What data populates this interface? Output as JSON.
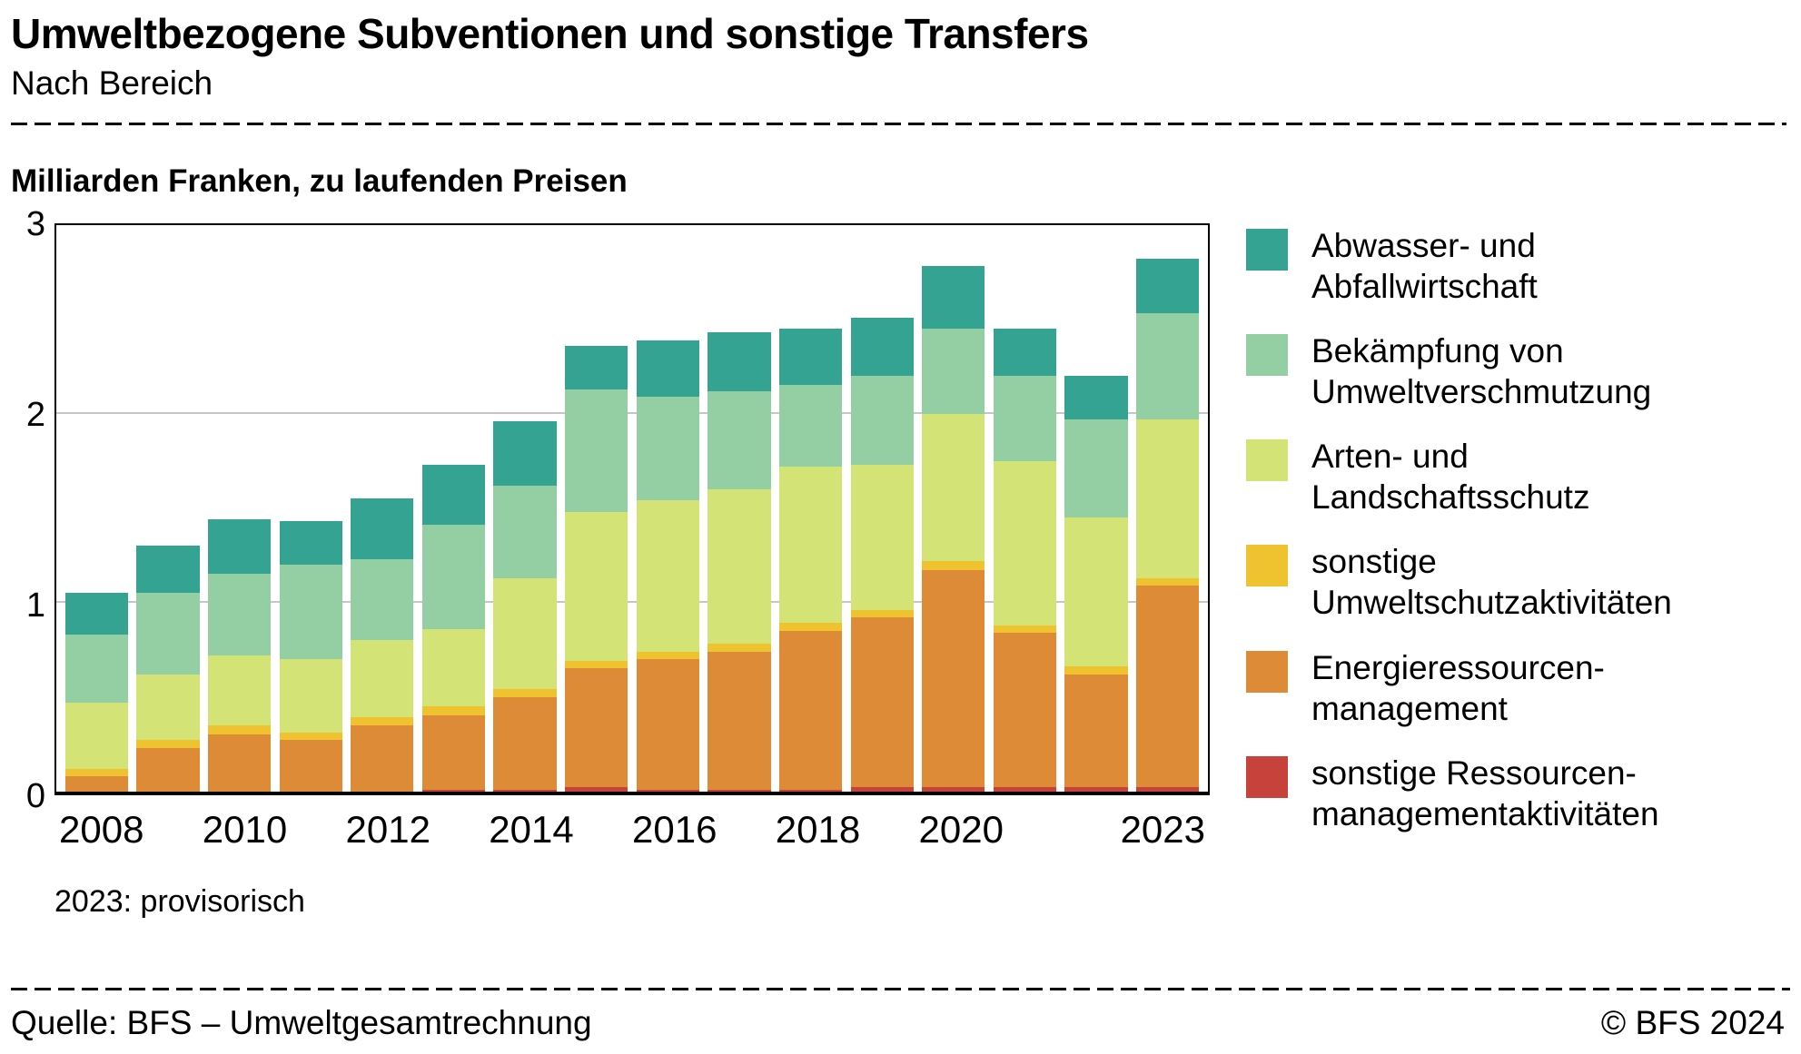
{
  "header": {
    "title": "Umweltbezogene Subventionen und sonstige Transfers",
    "subtitle": "Nach Bereich"
  },
  "chart": {
    "unit_label": "Milliarden Franken, zu laufenden Preisen",
    "footnote": "2023: provisorisch"
  },
  "chart_data": {
    "type": "bar",
    "stacked": true,
    "title": "Umweltbezogene Subventionen und sonstige Transfers",
    "ylabel": "Milliarden Franken, zu laufenden Preisen",
    "ylim": [
      0,
      3
    ],
    "yticks": [
      0,
      1,
      2,
      3
    ],
    "grid": "horizontal",
    "legend_position": "right",
    "categories": [
      "2008",
      "2009",
      "2010",
      "2011",
      "2012",
      "2013",
      "2014",
      "2015",
      "2016",
      "2017",
      "2018",
      "2019",
      "2020",
      "2021",
      "2022",
      "2023"
    ],
    "axis_labels": [
      "2008",
      "",
      "2010",
      "",
      "2012",
      "",
      "2014",
      "",
      "2016",
      "",
      "2018",
      "",
      "2020",
      "",
      "",
      "2023"
    ],
    "series": [
      {
        "name": "sonstige Ressourcenmanagementaktivitäten",
        "color": "#c8423c",
        "values": [
          0.0,
          0.0,
          0.0,
          0.0,
          0.0,
          0.01,
          0.01,
          0.02,
          0.01,
          0.01,
          0.01,
          0.02,
          0.02,
          0.02,
          0.02,
          0.02
        ]
      },
      {
        "name": "Energieressourcenmanagement",
        "color": "#dd8b37",
        "values": [
          0.08,
          0.23,
          0.3,
          0.27,
          0.35,
          0.39,
          0.49,
          0.63,
          0.69,
          0.73,
          0.84,
          0.9,
          1.15,
          0.82,
          0.6,
          1.07
        ]
      },
      {
        "name": "sonstige Umweltschutzaktivitäten",
        "color": "#eec32f",
        "values": [
          0.04,
          0.04,
          0.05,
          0.04,
          0.04,
          0.05,
          0.04,
          0.04,
          0.04,
          0.04,
          0.04,
          0.04,
          0.05,
          0.04,
          0.04,
          0.04
        ]
      },
      {
        "name": "Arten- und Landschaftsschutz",
        "color": "#d4e375",
        "values": [
          0.35,
          0.35,
          0.37,
          0.39,
          0.41,
          0.41,
          0.59,
          0.79,
          0.8,
          0.82,
          0.83,
          0.77,
          0.78,
          0.87,
          0.79,
          0.84
        ]
      },
      {
        "name": "Bekämpfung von Umweltverschmutzung",
        "color": "#94cfa4",
        "values": [
          0.36,
          0.43,
          0.43,
          0.5,
          0.43,
          0.55,
          0.49,
          0.65,
          0.55,
          0.52,
          0.43,
          0.47,
          0.45,
          0.45,
          0.52,
          0.56
        ]
      },
      {
        "name": "Abwasser- und Abfallwirtschaft",
        "color": "#35a391",
        "values": [
          0.22,
          0.25,
          0.29,
          0.23,
          0.32,
          0.32,
          0.34,
          0.23,
          0.3,
          0.31,
          0.3,
          0.31,
          0.33,
          0.25,
          0.23,
          0.29
        ]
      }
    ]
  },
  "legend": {
    "entries": [
      {
        "color": "#35a391",
        "lines": [
          "Abwasser- und",
          "Abfallwirtschaft"
        ]
      },
      {
        "color": "#94cfa4",
        "lines": [
          "Bekämpfung von",
          "Umweltverschmutzung"
        ]
      },
      {
        "color": "#d4e375",
        "lines": [
          "Arten- und",
          "Landschaftsschutz"
        ]
      },
      {
        "color": "#eec32f",
        "lines": [
          "sonstige",
          "Umweltschutzaktivitäten"
        ]
      },
      {
        "color": "#dd8b37",
        "lines": [
          "Energieressourcen-",
          "management"
        ]
      },
      {
        "color": "#c8423c",
        "lines": [
          "sonstige Ressourcen-",
          "managementaktivitäten"
        ]
      }
    ]
  },
  "footer": {
    "source": "Quelle: BFS – Umweltgesamtrechnung",
    "copyright": "© BFS 2024"
  }
}
